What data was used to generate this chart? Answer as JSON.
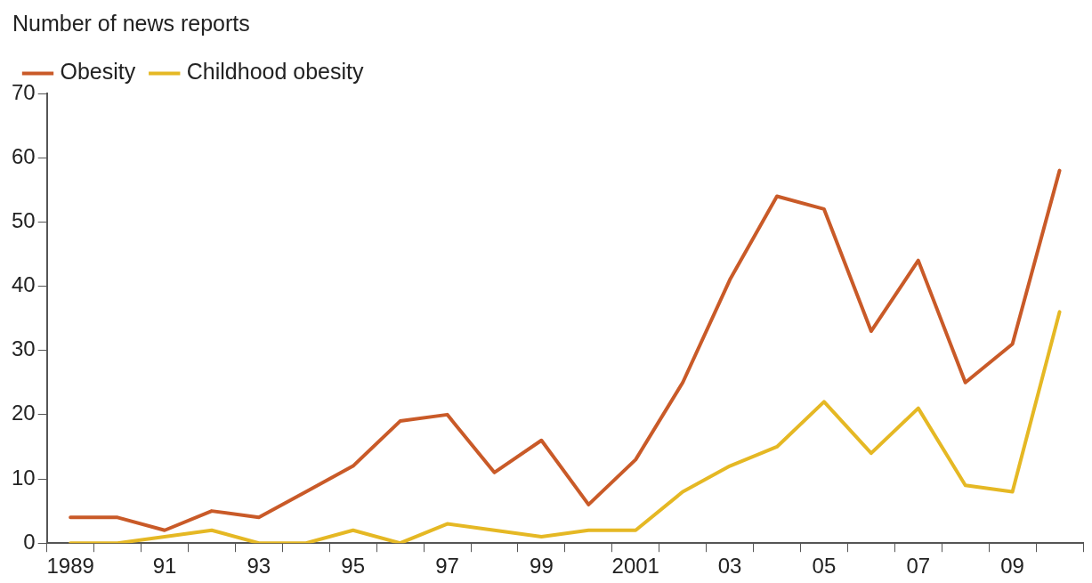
{
  "chart_data": {
    "type": "line",
    "ylabel": "Number of news reports",
    "categories": [
      "1989",
      null,
      "91",
      null,
      "93",
      null,
      "95",
      null,
      "97",
      null,
      "99",
      null,
      "2001",
      null,
      "03",
      null,
      "05",
      null,
      "07",
      null,
      "09",
      null
    ],
    "series": [
      {
        "name": "Obesity",
        "color": "#c95a28",
        "values": [
          4,
          4,
          2,
          5,
          4,
          8,
          12,
          19,
          20,
          11,
          16,
          6,
          13,
          25,
          41,
          54,
          52,
          33,
          44,
          25,
          31,
          58
        ]
      },
      {
        "name": "Childhood obesity",
        "color": "#e5b824",
        "values": [
          0,
          0,
          1,
          2,
          0,
          0,
          2,
          0,
          3,
          2,
          1,
          2,
          2,
          8,
          12,
          15,
          22,
          14,
          21,
          9,
          8,
          36
        ]
      }
    ],
    "ylim": [
      0,
      70
    ],
    "yticks": [
      0,
      10,
      20,
      30,
      40,
      50,
      60,
      70
    ],
    "grid": false,
    "legend": "top left",
    "marker": "none",
    "line_style": "solid"
  }
}
